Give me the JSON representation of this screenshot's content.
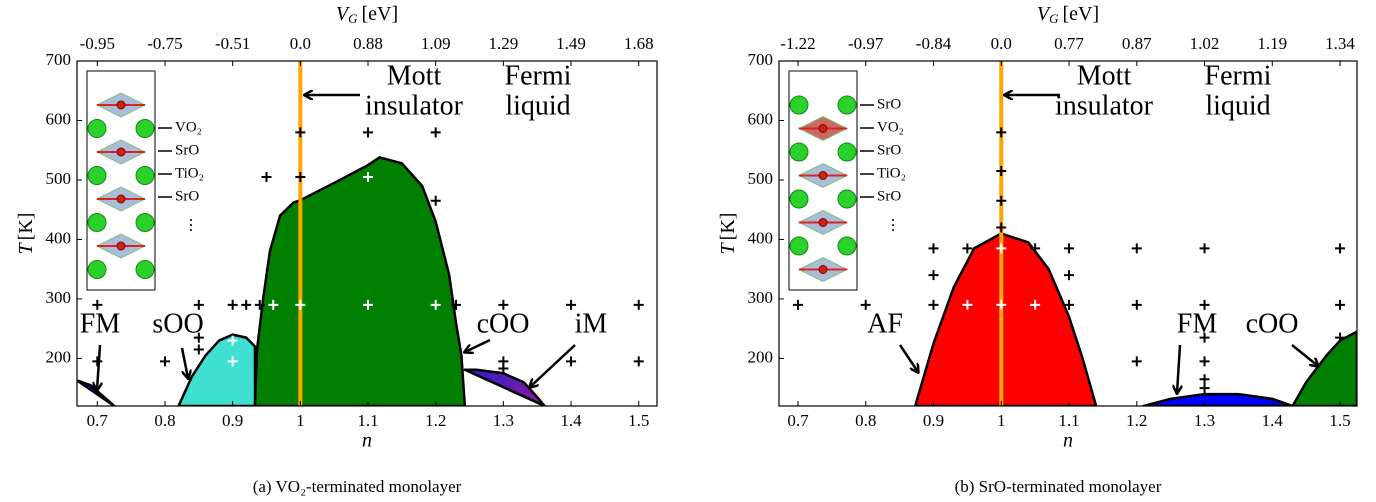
{
  "chart_data": [
    {
      "type": "phase",
      "xlim": [
        0.67,
        1.527
      ],
      "ylim": [
        120,
        700
      ],
      "xticks": [
        0.7,
        0.8,
        0.9,
        1.0,
        1.1,
        1.2,
        1.3,
        1.4,
        1.5
      ],
      "yticks": [
        200,
        300,
        400,
        500,
        600,
        700
      ],
      "top_xticks": [
        {
          "value": 0.7,
          "label": "-0.95"
        },
        {
          "value": 0.8,
          "label": "-0.75"
        },
        {
          "value": 0.9,
          "label": "-0.51"
        },
        {
          "value": 1.0,
          "label": "0.0"
        },
        {
          "value": 1.1,
          "label": "0.88"
        },
        {
          "value": 1.2,
          "label": "1.09"
        },
        {
          "value": 1.3,
          "label": "1.29"
        },
        {
          "value": 1.4,
          "label": "1.49"
        },
        {
          "value": 1.5,
          "label": "1.68"
        }
      ],
      "xlabel": "n",
      "ylabel": {
        "main": "T",
        "unit": "[K]"
      },
      "top_xlabel": {
        "main": "V",
        "sub": "G",
        "unit": "[eV]"
      },
      "vline": {
        "x": 1.0,
        "color": "#ffa500"
      },
      "regions": [
        {
          "color": "#0000ff",
          "x": [
            0.67,
            0.69,
            0.71,
            0.725
          ],
          "y": [
            163,
            155,
            135,
            120
          ]
        },
        {
          "color": "#40e0d0",
          "x": [
            0.82,
            0.84,
            0.86,
            0.88,
            0.9,
            0.92,
            0.933,
            0.933
          ],
          "y": [
            120,
            170,
            205,
            230,
            240,
            235,
            220,
            120
          ]
        },
        {
          "color": "#007f00",
          "x": [
            0.933,
            0.936,
            0.945,
            0.955,
            0.97,
            0.99,
            1.0,
            1.05,
            1.1,
            1.117,
            1.15,
            1.18,
            1.2,
            1.22,
            1.23,
            1.238,
            1.243
          ],
          "y": [
            120,
            215,
            300,
            380,
            440,
            462,
            466,
            495,
            525,
            538,
            528,
            490,
            430,
            340,
            260,
            205,
            120
          ]
        },
        {
          "colors": [
            "#2020d0",
            "#8a1a9a"
          ],
          "x": [
            1.243,
            1.26,
            1.3,
            1.33,
            1.35,
            1.361
          ],
          "y": [
            181,
            181,
            175,
            160,
            135,
            120
          ]
        }
      ],
      "points": [
        {
          "color": "#000000",
          "x": [
            0.7,
            0.7,
            0.8,
            0.85,
            0.85,
            0.85,
            0.9,
            0.92,
            0.94,
            0.95,
            1.0,
            1.0,
            1.1,
            1.2,
            1.2,
            1.23,
            1.3,
            1.4,
            1.5,
            1.3,
            1.3,
            1.4,
            1.5
          ],
          "y": [
            290,
            195,
            195,
            290,
            235,
            215,
            290,
            290,
            290,
            505,
            580,
            505,
            580,
            580,
            465,
            290,
            290,
            290,
            290,
            195,
            183,
            195,
            195
          ]
        },
        {
          "color": "#ffffff",
          "x": [
            0.9,
            0.9,
            0.96,
            1.0,
            1.1,
            1.2,
            1.1
          ],
          "y": [
            230,
            195,
            290,
            290,
            290,
            290,
            505
          ]
        }
      ],
      "annotations": [
        [
          "FM"
        ],
        [
          "sOO"
        ],
        [
          "Mott",
          "insulator"
        ],
        [
          "Fermi",
          "liquid"
        ],
        [
          "cOO"
        ],
        [
          "iM"
        ]
      ],
      "layers": [
        "VO₂",
        "SrO",
        "TiO₂",
        "SrO",
        "⋮"
      ],
      "caption": "(a) VO₂-terminated monolayer"
    },
    {
      "type": "phase",
      "xlim": [
        0.672,
        1.525
      ],
      "ylim": [
        120,
        700
      ],
      "xticks": [
        0.7,
        0.8,
        0.9,
        1.0,
        1.1,
        1.2,
        1.3,
        1.4,
        1.5
      ],
      "yticks": [
        200,
        300,
        400,
        500,
        600,
        700
      ],
      "top_xticks": [
        {
          "value": 0.7,
          "label": "-1.22"
        },
        {
          "value": 0.8,
          "label": "-0.97"
        },
        {
          "value": 0.9,
          "label": "-0.84"
        },
        {
          "value": 1.0,
          "label": "0.0"
        },
        {
          "value": 1.1,
          "label": "0.77"
        },
        {
          "value": 1.2,
          "label": "0.87"
        },
        {
          "value": 1.3,
          "label": "1.02"
        },
        {
          "value": 1.4,
          "label": "1.19"
        },
        {
          "value": 1.5,
          "label": "1.34"
        }
      ],
      "xlabel": "n",
      "ylabel": {
        "main": "T",
        "unit": "[K]"
      },
      "top_xlabel": {
        "main": "V",
        "sub": "G",
        "unit": "[eV]"
      },
      "vline": {
        "x": 1.0,
        "color": "#ffa500"
      },
      "regions": [
        {
          "color": "#ff0000",
          "x": [
            0.873,
            0.9,
            0.93,
            0.96,
            1.0,
            1.04,
            1.07,
            1.1,
            1.12,
            1.14
          ],
          "y": [
            120,
            225,
            320,
            385,
            410,
            395,
            350,
            270,
            200,
            120
          ]
        },
        {
          "color": "#0000ff",
          "x": [
            1.21,
            1.25,
            1.3,
            1.35,
            1.4,
            1.43
          ],
          "y": [
            120,
            132,
            140,
            140,
            132,
            120
          ]
        },
        {
          "color": "#007f00",
          "x": [
            1.43,
            1.45,
            1.48,
            1.5,
            1.525,
            1.525
          ],
          "y": [
            120,
            160,
            205,
            230,
            245,
            120
          ]
        }
      ],
      "points": [
        {
          "color": "#000000",
          "x": [
            0.7,
            0.8,
            0.9,
            0.9,
            0.9,
            0.95,
            1.0,
            1.0,
            1.0,
            1.0,
            1.05,
            1.1,
            1.1,
            1.1,
            1.2,
            1.2,
            1.2,
            1.3,
            1.3,
            1.3,
            1.3,
            1.3,
            1.3,
            1.5,
            1.5,
            1.5
          ],
          "y": [
            290,
            290,
            385,
            340,
            290,
            385,
            580,
            515,
            465,
            420,
            385,
            385,
            340,
            290,
            385,
            290,
            195,
            385,
            290,
            235,
            195,
            165,
            150,
            385,
            290,
            235
          ]
        },
        {
          "color": "#ffffff",
          "x": [
            0.95,
            1.0,
            1.0,
            1.05
          ],
          "y": [
            290,
            290,
            385,
            290
          ]
        }
      ],
      "annotations": [
        [
          "AF"
        ],
        [
          "Mott",
          "insulator"
        ],
        [
          "Fermi",
          "liquid"
        ],
        [
          "FM"
        ],
        [
          "cOO"
        ]
      ],
      "layers": [
        "SrO",
        "VO₂",
        "SrO",
        "TiO₂",
        "SrO",
        "⋮"
      ],
      "caption": "(b) SrO-terminated monolayer"
    }
  ]
}
